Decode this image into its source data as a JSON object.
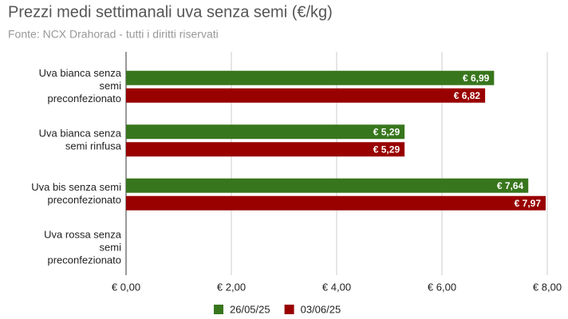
{
  "chart_data": {
    "type": "hbar",
    "title": "Prezzi medi settimanali uva senza semi (€/kg)",
    "subtitle": "Fonte: NCX Drahorad - tutti i diritti riservati",
    "categories": [
      "Uva bianca senza semi preconfezionato",
      "Uva bianca senza semi rinfusa",
      "Uva bis senza semi preconfezionato",
      "Uva rossa senza semi preconfezionato"
    ],
    "series": [
      {
        "name": "26/05/25",
        "color": "#38761d",
        "values": [
          6.99,
          5.29,
          7.64,
          null
        ],
        "value_labels": [
          "€ 6,99",
          "€ 5,29",
          "€ 7,64",
          null
        ]
      },
      {
        "name": "03/06/25",
        "color": "#990000",
        "values": [
          6.82,
          5.29,
          7.97,
          null
        ],
        "value_labels": [
          "€ 6,82",
          "€ 5,29",
          "€ 7,97",
          null
        ]
      }
    ],
    "xlim": [
      0,
      8
    ],
    "xticks": [
      {
        "value": 0,
        "label": "€ 0,00"
      },
      {
        "value": 2,
        "label": "€ 2,00"
      },
      {
        "value": 4,
        "label": "€ 4,00"
      },
      {
        "value": 6,
        "label": "€ 6,00"
      },
      {
        "value": 8,
        "label": "€ 8,00"
      }
    ],
    "grid": true,
    "legend": "bottom"
  }
}
